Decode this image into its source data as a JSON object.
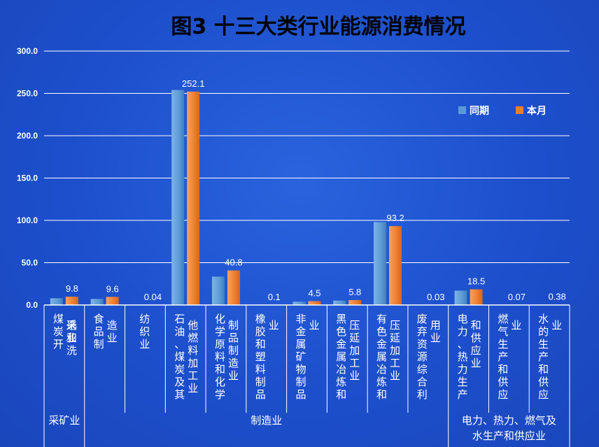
{
  "chart_data": {
    "type": "bar",
    "title": "图3  十三大类行业能源消费情况",
    "ylim": [
      0,
      300
    ],
    "yticks": [
      "0.0",
      "50.0",
      "100.0",
      "150.0",
      "200.0",
      "250.0",
      "300.0"
    ],
    "grid": true,
    "legend_position": "top-right",
    "categories": [
      {
        "lines": [
          "煤炭开",
          "采和洗",
          "选业"
        ]
      },
      {
        "lines": [
          "食品制",
          "造业"
        ]
      },
      {
        "lines": [
          "纺织业"
        ]
      },
      {
        "lines": [
          "石油、煤炭及其",
          "他燃料加工业"
        ]
      },
      {
        "lines": [
          "化学原料和化学",
          "制品制造业"
        ]
      },
      {
        "lines": [
          "橡胶和塑料制品",
          "业"
        ]
      },
      {
        "lines": [
          "非金属矿物制品",
          "业"
        ]
      },
      {
        "lines": [
          "黑色金属冶炼和",
          "压延加工业"
        ]
      },
      {
        "lines": [
          "有色金属冶炼和",
          "压延加工业"
        ]
      },
      {
        "lines": [
          "废弃资源综合利",
          "用业"
        ]
      },
      {
        "lines": [
          "电力、热力生产",
          "和供应业"
        ]
      },
      {
        "lines": [
          "燃气生产和供应",
          "业"
        ]
      },
      {
        "lines": [
          "水的生产和供应",
          "业"
        ]
      }
    ],
    "series": [
      {
        "name": "同期",
        "color": "#5b9bd5",
        "values": [
          8.0,
          7.2,
          0.04,
          254.0,
          33.5,
          0.1,
          4.0,
          5.2,
          98.0,
          0.03,
          17.0,
          0.07,
          0.38
        ]
      },
      {
        "name": "本月",
        "color": "#ed7d31",
        "values": [
          9.8,
          9.6,
          0.04,
          252.1,
          40.8,
          0.1,
          4.5,
          5.8,
          93.2,
          0.03,
          18.5,
          0.07,
          0.38
        ]
      }
    ],
    "data_labels": [
      "9.8",
      "9.6",
      "0.04",
      "252.1",
      "40.8",
      "0.1",
      "4.5",
      "5.8",
      "93.2",
      "0.03",
      "18.5",
      "0.07",
      "0.38"
    ],
    "groups": [
      {
        "label": "采矿业",
        "lines": [
          "采矿业"
        ],
        "span": [
          0,
          0
        ]
      },
      {
        "label": "制造业",
        "lines": [
          "制造业"
        ],
        "span": [
          1,
          9
        ]
      },
      {
        "label": "电力、热力、燃气及水生产和供应业",
        "lines": [
          "电力、热力、燃气及",
          "水生产和供应业"
        ],
        "span": [
          10,
          12
        ]
      }
    ]
  }
}
